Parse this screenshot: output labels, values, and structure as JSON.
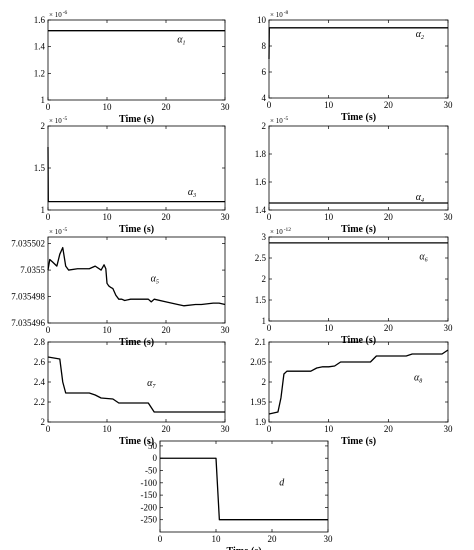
{
  "chart_data": [
    {
      "id": "alpha1",
      "type": "line",
      "xlabel": "Time (s)",
      "x_ticks": [
        0,
        10,
        20,
        30
      ],
      "y_ticks": [
        "1",
        "1.2",
        "1.4",
        "1.6"
      ],
      "y_tick_values": [
        1,
        1.2,
        1.4,
        1.6
      ],
      "multiplier_base": "× 10",
      "multiplier_exp": "-6",
      "xlim": [
        0,
        30
      ],
      "ylim": [
        1,
        1.6
      ],
      "annotation": "α",
      "annotation_sub": "1",
      "series": [
        {
          "x": [
            0,
            30
          ],
          "y": [
            1.52,
            1.52
          ]
        }
      ]
    },
    {
      "id": "alpha2",
      "type": "line",
      "xlabel": "Time (s)",
      "x_ticks": [
        0,
        10,
        20,
        30
      ],
      "y_ticks": [
        "4",
        "6",
        "8",
        "10"
      ],
      "y_tick_values": [
        4,
        6,
        8,
        10
      ],
      "multiplier_base": "× 10",
      "multiplier_exp": "-8",
      "xlim": [
        0,
        30
      ],
      "ylim": [
        4,
        10
      ],
      "annotation": "α",
      "annotation_sub": "2",
      "series": [
        {
          "x": [
            0,
            0.05,
            30
          ],
          "y": [
            7.0,
            9.4,
            9.4
          ]
        }
      ]
    },
    {
      "id": "alpha3",
      "type": "line",
      "xlabel": "Time (s)",
      "x_ticks": [
        0,
        10,
        20,
        30
      ],
      "y_ticks": [
        "1",
        "1.5",
        "2"
      ],
      "y_tick_values": [
        1,
        1.5,
        2
      ],
      "multiplier_base": "× 10",
      "multiplier_exp": "-5",
      "xlim": [
        0,
        30
      ],
      "ylim": [
        1,
        2
      ],
      "annotation": "α",
      "annotation_sub": "3",
      "series": [
        {
          "x": [
            0,
            0.05,
            30
          ],
          "y": [
            1.75,
            1.1,
            1.1
          ]
        }
      ]
    },
    {
      "id": "alpha4",
      "type": "line",
      "xlabel": "Time (s)",
      "x_ticks": [
        0,
        10,
        20,
        30
      ],
      "y_ticks": [
        "1.4",
        "1.6",
        "1.8",
        "2"
      ],
      "y_tick_values": [
        1.4,
        1.6,
        1.8,
        2
      ],
      "multiplier_base": "× 10",
      "multiplier_exp": "-5",
      "xlim": [
        0,
        30
      ],
      "ylim": [
        1.4,
        2
      ],
      "annotation": "α",
      "annotation_sub": "4",
      "series": [
        {
          "x": [
            0,
            30
          ],
          "y": [
            1.45,
            1.45
          ]
        }
      ]
    },
    {
      "id": "alpha5",
      "type": "line",
      "xlabel": "Time (s)",
      "x_ticks": [
        0,
        10,
        20,
        30
      ],
      "y_ticks": [
        "7.035496",
        "7.035498",
        "7.0355",
        "7.035502"
      ],
      "y_tick_values": [
        7.035496,
        7.035498,
        7.0355,
        7.035502
      ],
      "multiplier_base": "× 10",
      "multiplier_exp": "-5",
      "xlim": [
        0,
        30
      ],
      "ylim": [
        7.035496,
        7.0355025
      ],
      "annotation": "α",
      "annotation_sub": "5",
      "series": [
        {
          "x": [
            0,
            0.3,
            0.8,
            1.5,
            2,
            2.5,
            3,
            3.5,
            5,
            7,
            8,
            9,
            9.5,
            9.8,
            10,
            10.3,
            10.6,
            11,
            11.5,
            12,
            12.5,
            13,
            14,
            15,
            17,
            17.5,
            18,
            20,
            22,
            23,
            25,
            26,
            28,
            29,
            30
          ],
          "y": [
            7.0355,
            7.0355008,
            7.0355006,
            7.0355003,
            7.0355012,
            7.0355017,
            7.0355003,
            7.0355,
            7.0355001,
            7.0355001,
            7.0355003,
            7.0355,
            7.0355004,
            7.0355001,
            7.035499,
            7.0354988,
            7.0354987,
            7.0354986,
            7.0354981,
            7.0354978,
            7.0354978,
            7.0354977,
            7.0354978,
            7.0354978,
            7.0354978,
            7.0354976,
            7.0354978,
            7.0354976,
            7.0354974,
            7.0354973,
            7.0354974,
            7.0354974,
            7.0354975,
            7.0354975,
            7.0354974
          ]
        }
      ]
    },
    {
      "id": "alpha6",
      "type": "line",
      "xlabel": "Time (s)",
      "x_ticks": [
        0,
        10,
        20,
        30
      ],
      "y_ticks": [
        "1",
        "1.5",
        "2",
        "2.5",
        "3"
      ],
      "y_tick_values": [
        1,
        1.5,
        2,
        2.5,
        3
      ],
      "multiplier_base": "× 10",
      "multiplier_exp": "-12",
      "xlim": [
        0,
        30
      ],
      "ylim": [
        1,
        3
      ],
      "annotation": "α",
      "annotation_sub": "6",
      "series": [
        {
          "x": [
            0,
            30
          ],
          "y": [
            2.86,
            2.86
          ]
        }
      ]
    },
    {
      "id": "alpha7",
      "type": "line",
      "xlabel": "Time (s)",
      "x_ticks": [
        0,
        10,
        20,
        30
      ],
      "y_ticks": [
        "2",
        "2.2",
        "2.4",
        "2.6",
        "2.8"
      ],
      "y_tick_values": [
        2,
        2.2,
        2.4,
        2.6,
        2.8
      ],
      "multiplier_base": "",
      "multiplier_exp": "",
      "xlim": [
        0,
        30
      ],
      "ylim": [
        2,
        2.8
      ],
      "annotation": "α",
      "annotation_sub": "7",
      "series": [
        {
          "x": [
            0,
            2,
            2.5,
            3,
            7,
            8,
            9,
            11,
            12,
            17,
            18,
            30
          ],
          "y": [
            2.65,
            2.63,
            2.4,
            2.29,
            2.29,
            2.27,
            2.24,
            2.23,
            2.19,
            2.19,
            2.1,
            2.1
          ]
        }
      ]
    },
    {
      "id": "alpha8",
      "type": "line",
      "xlabel": "Time (s)",
      "x_ticks": [
        0,
        10,
        20,
        30
      ],
      "y_ticks": [
        "1.9",
        "1.95",
        "2",
        "2.05",
        "2.1"
      ],
      "y_tick_values": [
        1.9,
        1.95,
        2,
        2.05,
        2.1
      ],
      "multiplier_base": "",
      "multiplier_exp": "",
      "xlim": [
        0,
        30
      ],
      "ylim": [
        1.9,
        2.1
      ],
      "annotation": "α",
      "annotation_sub": "8",
      "series": [
        {
          "x": [
            0,
            1.5,
            2,
            2.5,
            3,
            7,
            8,
            9,
            10,
            11,
            12,
            17,
            18,
            23,
            24,
            29,
            30
          ],
          "y": [
            1.92,
            1.925,
            1.96,
            2.02,
            2.027,
            2.027,
            2.035,
            2.038,
            2.038,
            2.04,
            2.05,
            2.05,
            2.065,
            2.065,
            2.07,
            2.07,
            2.08
          ]
        }
      ]
    },
    {
      "id": "d",
      "type": "line",
      "xlabel": "Time (s)",
      "x_ticks": [
        0,
        10,
        20,
        30
      ],
      "y_ticks": [
        "-250",
        "-200",
        "-150",
        "-100",
        "-50",
        "0",
        "50"
      ],
      "y_tick_values": [
        -250,
        -200,
        -150,
        -100,
        -50,
        0,
        50
      ],
      "multiplier_base": "",
      "multiplier_exp": "",
      "xlim": [
        0,
        30
      ],
      "ylim": [
        -300,
        70
      ],
      "annotation": "d",
      "annotation_sub": "",
      "series": [
        {
          "x": [
            0,
            10,
            10.6,
            30
          ],
          "y": [
            0,
            0,
            -250,
            -250
          ]
        }
      ]
    }
  ]
}
